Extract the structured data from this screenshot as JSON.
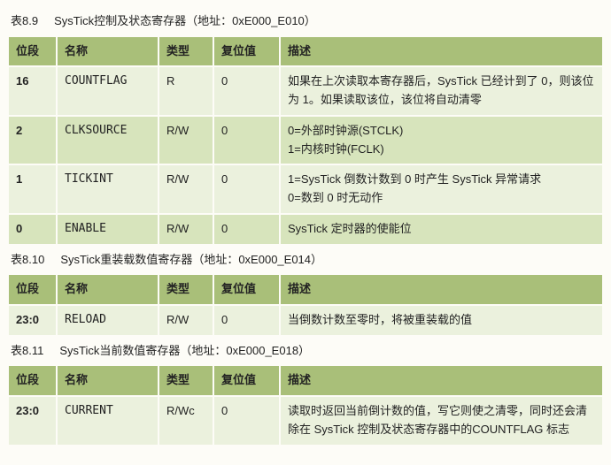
{
  "colors": {
    "header_bg": "#a9bf79",
    "row_a_bg": "#ebf1dd",
    "row_b_bg": "#d7e4bc",
    "border": "#fdfcf7",
    "page_bg": "#fdfcf7"
  },
  "columns": {
    "bit": "位段",
    "name": "名称",
    "type": "类型",
    "reset": "复位值",
    "desc": "描述"
  },
  "table1": {
    "caption_no": "表8.9",
    "caption_text": "SysTick控制及状态寄存器（地址：0xE000_E010）",
    "rows": [
      {
        "bit": "16",
        "name": "COUNTFLAG",
        "type": "R",
        "reset": "0",
        "desc": "如果在上次读取本寄存器后，SysTick 已经计到了 0，则该位为 1。如果读取该位，该位将自动清零"
      },
      {
        "bit": "2",
        "name": "CLKSOURCE",
        "type": "R/W",
        "reset": "0",
        "desc": "0=外部时钟源(STCLK)\n1=内核时钟(FCLK)"
      },
      {
        "bit": "1",
        "name": "TICKINT",
        "type": "R/W",
        "reset": "0",
        "desc": "1=SysTick 倒数计数到 0 时产生 SysTick 异常请求\n0=数到 0 时无动作"
      },
      {
        "bit": "0",
        "name": "ENABLE",
        "type": "R/W",
        "reset": "0",
        "desc": "SysTick 定时器的使能位"
      }
    ]
  },
  "table2": {
    "caption_no": "表8.10",
    "caption_text": "SysTick重装载数值寄存器（地址：0xE000_E014）",
    "rows": [
      {
        "bit": "23:0",
        "name": "RELOAD",
        "type": "R/W",
        "reset": "0",
        "desc": "当倒数计数至零时，将被重装载的值"
      }
    ]
  },
  "table3": {
    "caption_no": "表8.11",
    "caption_text": "SysTick当前数值寄存器（地址：0xE000_E018）",
    "rows": [
      {
        "bit": "23:0",
        "name": "CURRENT",
        "type": "R/Wc",
        "reset": "0",
        "desc": "读取时返回当前倒计数的值，写它则使之清零，同时还会清除在 SysTick 控制及状态寄存器中的COUNTFLAG 标志"
      }
    ]
  }
}
